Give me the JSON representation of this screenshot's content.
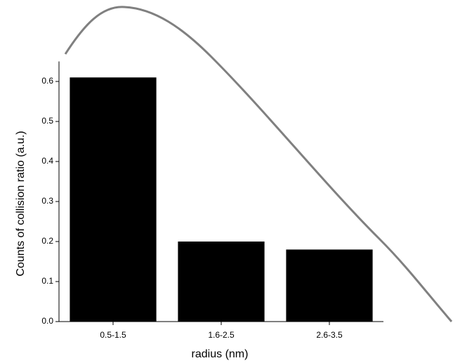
{
  "chart_data": {
    "type": "bar",
    "categories": [
      "0.5-1.5",
      "1.6-2.5",
      "2.6-3.5"
    ],
    "values": [
      0.61,
      0.2,
      0.18
    ],
    "color": "#000000",
    "x_label": "radius (nm)",
    "y_label": "Counts of collision ratio (a.u.)",
    "ylim": [
      0,
      0.65
    ],
    "yticks": [
      {
        "value": 0,
        "label": "0.0"
      },
      0.1,
      0.2,
      0.3,
      0.4,
      0.5,
      0.6
    ],
    "grid": false
  }
}
